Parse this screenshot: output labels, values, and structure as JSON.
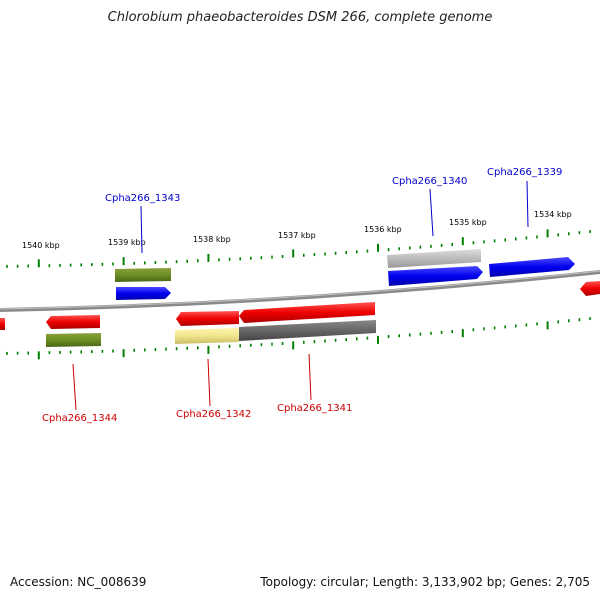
{
  "title": "Chlorobium phaeobacteroides DSM 266, complete genome",
  "footer": {
    "accession": "Accession: NC_008639",
    "topology": "Topology: circular; Length: 3,133,902 bp; Genes: 2,705"
  },
  "tick_labels": [
    "1540 kbp",
    "1539 kbp",
    "1538 kbp",
    "1537 kbp",
    "1536 kbp",
    "1535 kbp",
    "1534 kbp"
  ],
  "genes": [
    {
      "name": "Cpha266_1339",
      "strand": "forward",
      "color": "#0000cc"
    },
    {
      "name": "Cpha266_1340",
      "strand": "forward",
      "color": "#0000cc"
    },
    {
      "name": "Cpha266_1341",
      "strand": "reverse",
      "color": "#cc0000"
    },
    {
      "name": "Cpha266_1342",
      "strand": "reverse",
      "color": "#cc0000"
    },
    {
      "name": "Cpha266_1343",
      "strand": "forward",
      "color": "#0000cc"
    },
    {
      "name": "Cpha266_1344",
      "strand": "reverse",
      "color": "#cc0000"
    }
  ],
  "colors": {
    "forward_cds": "#0000ee",
    "reverse_cds": "#ee0000",
    "tick": "#008000",
    "backbone": "#888888"
  }
}
